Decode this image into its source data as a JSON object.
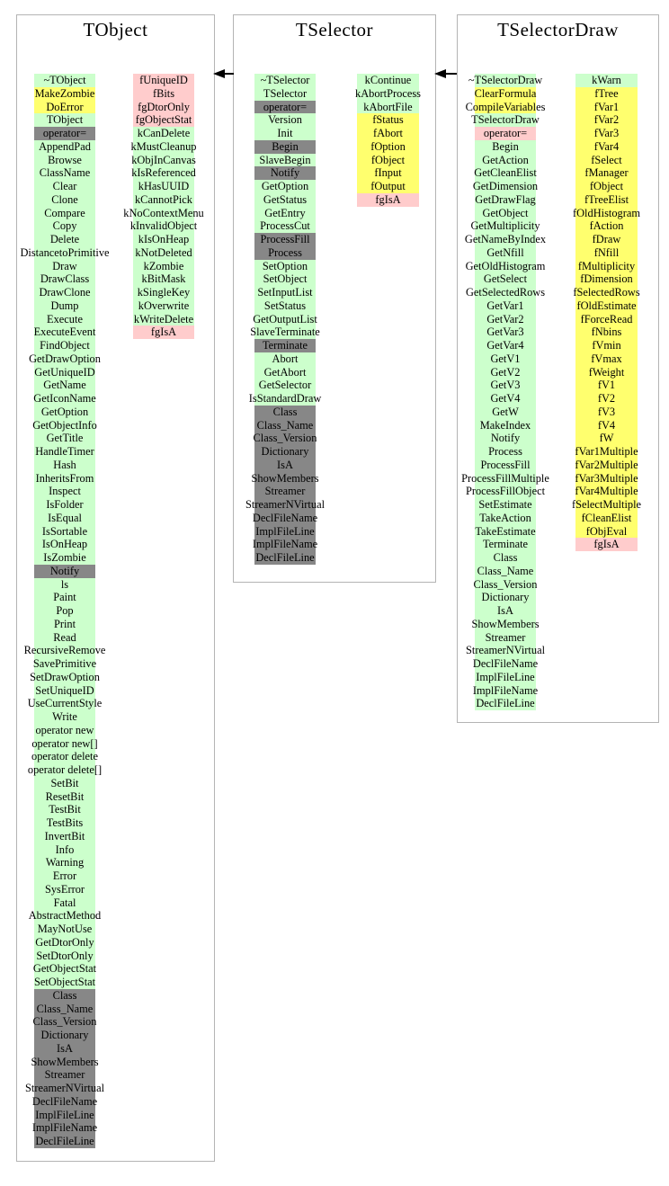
{
  "colors": {
    "green": "#ccffcc",
    "yellow": "#ffff6e",
    "pink": "#ffcccc",
    "gray": "#878787"
  },
  "arrows": [
    {
      "icon": "left-arrow-icon"
    },
    {
      "icon": "left-arrow-icon"
    }
  ],
  "classes": [
    {
      "name": "TObject",
      "methods": [
        {
          "label": "~TObject",
          "color": "green"
        },
        {
          "label": "MakeZombie",
          "color": "yellow"
        },
        {
          "label": "DoError",
          "color": "yellow"
        },
        {
          "label": "TObject",
          "color": "green"
        },
        {
          "label": "operator=",
          "color": "gray"
        },
        {
          "label": "AppendPad",
          "color": "green"
        },
        {
          "label": "Browse",
          "color": "green"
        },
        {
          "label": "ClassName",
          "color": "green"
        },
        {
          "label": "Clear",
          "color": "green"
        },
        {
          "label": "Clone",
          "color": "green"
        },
        {
          "label": "Compare",
          "color": "green"
        },
        {
          "label": "Copy",
          "color": "green"
        },
        {
          "label": "Delete",
          "color": "green"
        },
        {
          "label": "DistancetoPrimitive",
          "color": "green"
        },
        {
          "label": "Draw",
          "color": "green"
        },
        {
          "label": "DrawClass",
          "color": "green"
        },
        {
          "label": "DrawClone",
          "color": "green"
        },
        {
          "label": "Dump",
          "color": "green"
        },
        {
          "label": "Execute",
          "color": "green"
        },
        {
          "label": "ExecuteEvent",
          "color": "green"
        },
        {
          "label": "FindObject",
          "color": "green"
        },
        {
          "label": "GetDrawOption",
          "color": "green"
        },
        {
          "label": "GetUniqueID",
          "color": "green"
        },
        {
          "label": "GetName",
          "color": "green"
        },
        {
          "label": "GetIconName",
          "color": "green"
        },
        {
          "label": "GetOption",
          "color": "green"
        },
        {
          "label": "GetObjectInfo",
          "color": "green"
        },
        {
          "label": "GetTitle",
          "color": "green"
        },
        {
          "label": "HandleTimer",
          "color": "green"
        },
        {
          "label": "Hash",
          "color": "green"
        },
        {
          "label": "InheritsFrom",
          "color": "green"
        },
        {
          "label": "Inspect",
          "color": "green"
        },
        {
          "label": "IsFolder",
          "color": "green"
        },
        {
          "label": "IsEqual",
          "color": "green"
        },
        {
          "label": "IsSortable",
          "color": "green"
        },
        {
          "label": "IsOnHeap",
          "color": "green"
        },
        {
          "label": "IsZombie",
          "color": "green"
        },
        {
          "label": "Notify",
          "color": "gray"
        },
        {
          "label": "ls",
          "color": "green"
        },
        {
          "label": "Paint",
          "color": "green"
        },
        {
          "label": "Pop",
          "color": "green"
        },
        {
          "label": "Print",
          "color": "green"
        },
        {
          "label": "Read",
          "color": "green"
        },
        {
          "label": "RecursiveRemove",
          "color": "green"
        },
        {
          "label": "SavePrimitive",
          "color": "green"
        },
        {
          "label": "SetDrawOption",
          "color": "green"
        },
        {
          "label": "SetUniqueID",
          "color": "green"
        },
        {
          "label": "UseCurrentStyle",
          "color": "green"
        },
        {
          "label": "Write",
          "color": "green"
        },
        {
          "label": "operator new",
          "color": "green"
        },
        {
          "label": "operator new[]",
          "color": "green"
        },
        {
          "label": "operator delete",
          "color": "green"
        },
        {
          "label": "operator delete[]",
          "color": "green"
        },
        {
          "label": "SetBit",
          "color": "green"
        },
        {
          "label": "ResetBit",
          "color": "green"
        },
        {
          "label": "TestBit",
          "color": "green"
        },
        {
          "label": "TestBits",
          "color": "green"
        },
        {
          "label": "InvertBit",
          "color": "green"
        },
        {
          "label": "Info",
          "color": "green"
        },
        {
          "label": "Warning",
          "color": "green"
        },
        {
          "label": "Error",
          "color": "green"
        },
        {
          "label": "SysError",
          "color": "green"
        },
        {
          "label": "Fatal",
          "color": "green"
        },
        {
          "label": "AbstractMethod",
          "color": "green"
        },
        {
          "label": "MayNotUse",
          "color": "green"
        },
        {
          "label": "GetDtorOnly",
          "color": "green"
        },
        {
          "label": "SetDtorOnly",
          "color": "green"
        },
        {
          "label": "GetObjectStat",
          "color": "green"
        },
        {
          "label": "SetObjectStat",
          "color": "green"
        },
        {
          "label": "Class",
          "color": "gray"
        },
        {
          "label": "Class_Name",
          "color": "gray"
        },
        {
          "label": "Class_Version",
          "color": "gray"
        },
        {
          "label": "Dictionary",
          "color": "gray"
        },
        {
          "label": "IsA",
          "color": "gray"
        },
        {
          "label": "ShowMembers",
          "color": "gray"
        },
        {
          "label": "Streamer",
          "color": "gray"
        },
        {
          "label": "StreamerNVirtual",
          "color": "gray"
        },
        {
          "label": "DeclFileName",
          "color": "gray"
        },
        {
          "label": "ImplFileLine",
          "color": "gray"
        },
        {
          "label": "ImplFileName",
          "color": "gray"
        },
        {
          "label": "DeclFileLine",
          "color": "gray"
        }
      ],
      "members": [
        {
          "label": "fUniqueID",
          "color": "pink"
        },
        {
          "label": "fBits",
          "color": "pink"
        },
        {
          "label": "fgDtorOnly",
          "color": "pink"
        },
        {
          "label": "fgObjectStat",
          "color": "pink"
        },
        {
          "label": "kCanDelete",
          "color": "green"
        },
        {
          "label": "kMustCleanup",
          "color": "green"
        },
        {
          "label": "kObjInCanvas",
          "color": "green"
        },
        {
          "label": "kIsReferenced",
          "color": "green"
        },
        {
          "label": "kHasUUID",
          "color": "green"
        },
        {
          "label": "kCannotPick",
          "color": "green"
        },
        {
          "label": "kNoContextMenu",
          "color": "green"
        },
        {
          "label": "kInvalidObject",
          "color": "green"
        },
        {
          "label": "kIsOnHeap",
          "color": "green"
        },
        {
          "label": "kNotDeleted",
          "color": "green"
        },
        {
          "label": "kZombie",
          "color": "green"
        },
        {
          "label": "kBitMask",
          "color": "green"
        },
        {
          "label": "kSingleKey",
          "color": "green"
        },
        {
          "label": "kOverwrite",
          "color": "green"
        },
        {
          "label": "kWriteDelete",
          "color": "green"
        },
        {
          "label": "fgIsA",
          "color": "pink"
        }
      ]
    },
    {
      "name": "TSelector",
      "methods": [
        {
          "label": "~TSelector",
          "color": "green"
        },
        {
          "label": "TSelector",
          "color": "green"
        },
        {
          "label": "operator=",
          "color": "gray"
        },
        {
          "label": "Version",
          "color": "green"
        },
        {
          "label": "Init",
          "color": "green"
        },
        {
          "label": "Begin",
          "color": "gray"
        },
        {
          "label": "SlaveBegin",
          "color": "green"
        },
        {
          "label": "Notify",
          "color": "gray"
        },
        {
          "label": "GetOption",
          "color": "green"
        },
        {
          "label": "GetStatus",
          "color": "green"
        },
        {
          "label": "GetEntry",
          "color": "green"
        },
        {
          "label": "ProcessCut",
          "color": "green"
        },
        {
          "label": "ProcessFill",
          "color": "gray"
        },
        {
          "label": "Process",
          "color": "gray"
        },
        {
          "label": "SetOption",
          "color": "green"
        },
        {
          "label": "SetObject",
          "color": "green"
        },
        {
          "label": "SetInputList",
          "color": "green"
        },
        {
          "label": "SetStatus",
          "color": "green"
        },
        {
          "label": "GetOutputList",
          "color": "green"
        },
        {
          "label": "SlaveTerminate",
          "color": "green"
        },
        {
          "label": "Terminate",
          "color": "gray"
        },
        {
          "label": "Abort",
          "color": "green"
        },
        {
          "label": "GetAbort",
          "color": "green"
        },
        {
          "label": "GetSelector",
          "color": "green"
        },
        {
          "label": "IsStandardDraw",
          "color": "green"
        },
        {
          "label": "Class",
          "color": "gray"
        },
        {
          "label": "Class_Name",
          "color": "gray"
        },
        {
          "label": "Class_Version",
          "color": "gray"
        },
        {
          "label": "Dictionary",
          "color": "gray"
        },
        {
          "label": "IsA",
          "color": "gray"
        },
        {
          "label": "ShowMembers",
          "color": "gray"
        },
        {
          "label": "Streamer",
          "color": "gray"
        },
        {
          "label": "StreamerNVirtual",
          "color": "gray"
        },
        {
          "label": "DeclFileName",
          "color": "gray"
        },
        {
          "label": "ImplFileLine",
          "color": "gray"
        },
        {
          "label": "ImplFileName",
          "color": "gray"
        },
        {
          "label": "DeclFileLine",
          "color": "gray"
        }
      ],
      "members": [
        {
          "label": "kContinue",
          "color": "green"
        },
        {
          "label": "kAbortProcess",
          "color": "green"
        },
        {
          "label": "kAbortFile",
          "color": "green"
        },
        {
          "label": "fStatus",
          "color": "yellow"
        },
        {
          "label": "fAbort",
          "color": "yellow"
        },
        {
          "label": "fOption",
          "color": "yellow"
        },
        {
          "label": "fObject",
          "color": "yellow"
        },
        {
          "label": "fInput",
          "color": "yellow"
        },
        {
          "label": "fOutput",
          "color": "yellow"
        },
        {
          "label": "fgIsA",
          "color": "pink"
        }
      ]
    },
    {
      "name": "TSelectorDraw",
      "methods": [
        {
          "label": "~TSelectorDraw",
          "color": "green"
        },
        {
          "label": "ClearFormula",
          "color": "yellow"
        },
        {
          "label": "CompileVariables",
          "color": "yellow"
        },
        {
          "label": "TSelectorDraw",
          "color": "green"
        },
        {
          "label": "operator=",
          "color": "pink"
        },
        {
          "label": "Begin",
          "color": "green"
        },
        {
          "label": "GetAction",
          "color": "green"
        },
        {
          "label": "GetCleanElist",
          "color": "green"
        },
        {
          "label": "GetDimension",
          "color": "green"
        },
        {
          "label": "GetDrawFlag",
          "color": "green"
        },
        {
          "label": "GetObject",
          "color": "green"
        },
        {
          "label": "GetMultiplicity",
          "color": "green"
        },
        {
          "label": "GetNameByIndex",
          "color": "green"
        },
        {
          "label": "GetNfill",
          "color": "green"
        },
        {
          "label": "GetOldHistogram",
          "color": "green"
        },
        {
          "label": "GetSelect",
          "color": "green"
        },
        {
          "label": "GetSelectedRows",
          "color": "green"
        },
        {
          "label": "GetVar1",
          "color": "green"
        },
        {
          "label": "GetVar2",
          "color": "green"
        },
        {
          "label": "GetVar3",
          "color": "green"
        },
        {
          "label": "GetVar4",
          "color": "green"
        },
        {
          "label": "GetV1",
          "color": "green"
        },
        {
          "label": "GetV2",
          "color": "green"
        },
        {
          "label": "GetV3",
          "color": "green"
        },
        {
          "label": "GetV4",
          "color": "green"
        },
        {
          "label": "GetW",
          "color": "green"
        },
        {
          "label": "MakeIndex",
          "color": "green"
        },
        {
          "label": "Notify",
          "color": "green"
        },
        {
          "label": "Process",
          "color": "green"
        },
        {
          "label": "ProcessFill",
          "color": "green"
        },
        {
          "label": "ProcessFillMultiple",
          "color": "green"
        },
        {
          "label": "ProcessFillObject",
          "color": "green"
        },
        {
          "label": "SetEstimate",
          "color": "green"
        },
        {
          "label": "TakeAction",
          "color": "green"
        },
        {
          "label": "TakeEstimate",
          "color": "green"
        },
        {
          "label": "Terminate",
          "color": "green"
        },
        {
          "label": "Class",
          "color": "green"
        },
        {
          "label": "Class_Name",
          "color": "green"
        },
        {
          "label": "Class_Version",
          "color": "green"
        },
        {
          "label": "Dictionary",
          "color": "green"
        },
        {
          "label": "IsA",
          "color": "green"
        },
        {
          "label": "ShowMembers",
          "color": "green"
        },
        {
          "label": "Streamer",
          "color": "green"
        },
        {
          "label": "StreamerNVirtual",
          "color": "green"
        },
        {
          "label": "DeclFileName",
          "color": "green"
        },
        {
          "label": "ImplFileLine",
          "color": "green"
        },
        {
          "label": "ImplFileName",
          "color": "green"
        },
        {
          "label": "DeclFileLine",
          "color": "green"
        }
      ],
      "members": [
        {
          "label": "kWarn",
          "color": "green"
        },
        {
          "label": "fTree",
          "color": "yellow"
        },
        {
          "label": "fVar1",
          "color": "yellow"
        },
        {
          "label": "fVar2",
          "color": "yellow"
        },
        {
          "label": "fVar3",
          "color": "yellow"
        },
        {
          "label": "fVar4",
          "color": "yellow"
        },
        {
          "label": "fSelect",
          "color": "yellow"
        },
        {
          "label": "fManager",
          "color": "yellow"
        },
        {
          "label": "fObject",
          "color": "yellow"
        },
        {
          "label": "fTreeElist",
          "color": "yellow"
        },
        {
          "label": "fOldHistogram",
          "color": "yellow"
        },
        {
          "label": "fAction",
          "color": "yellow"
        },
        {
          "label": "fDraw",
          "color": "yellow"
        },
        {
          "label": "fNfill",
          "color": "yellow"
        },
        {
          "label": "fMultiplicity",
          "color": "yellow"
        },
        {
          "label": "fDimension",
          "color": "yellow"
        },
        {
          "label": "fSelectedRows",
          "color": "yellow"
        },
        {
          "label": "fOldEstimate",
          "color": "yellow"
        },
        {
          "label": "fForceRead",
          "color": "yellow"
        },
        {
          "label": "fNbins",
          "color": "yellow"
        },
        {
          "label": "fVmin",
          "color": "yellow"
        },
        {
          "label": "fVmax",
          "color": "yellow"
        },
        {
          "label": "fWeight",
          "color": "yellow"
        },
        {
          "label": "fV1",
          "color": "yellow"
        },
        {
          "label": "fV2",
          "color": "yellow"
        },
        {
          "label": "fV3",
          "color": "yellow"
        },
        {
          "label": "fV4",
          "color": "yellow"
        },
        {
          "label": "fW",
          "color": "yellow"
        },
        {
          "label": "fVar1Multiple",
          "color": "yellow"
        },
        {
          "label": "fVar2Multiple",
          "color": "yellow"
        },
        {
          "label": "fVar3Multiple",
          "color": "yellow"
        },
        {
          "label": "fVar4Multiple",
          "color": "yellow"
        },
        {
          "label": "fSelectMultiple",
          "color": "yellow"
        },
        {
          "label": "fCleanElist",
          "color": "yellow"
        },
        {
          "label": "fObjEval",
          "color": "yellow"
        },
        {
          "label": "fgIsA",
          "color": "pink"
        }
      ]
    }
  ]
}
